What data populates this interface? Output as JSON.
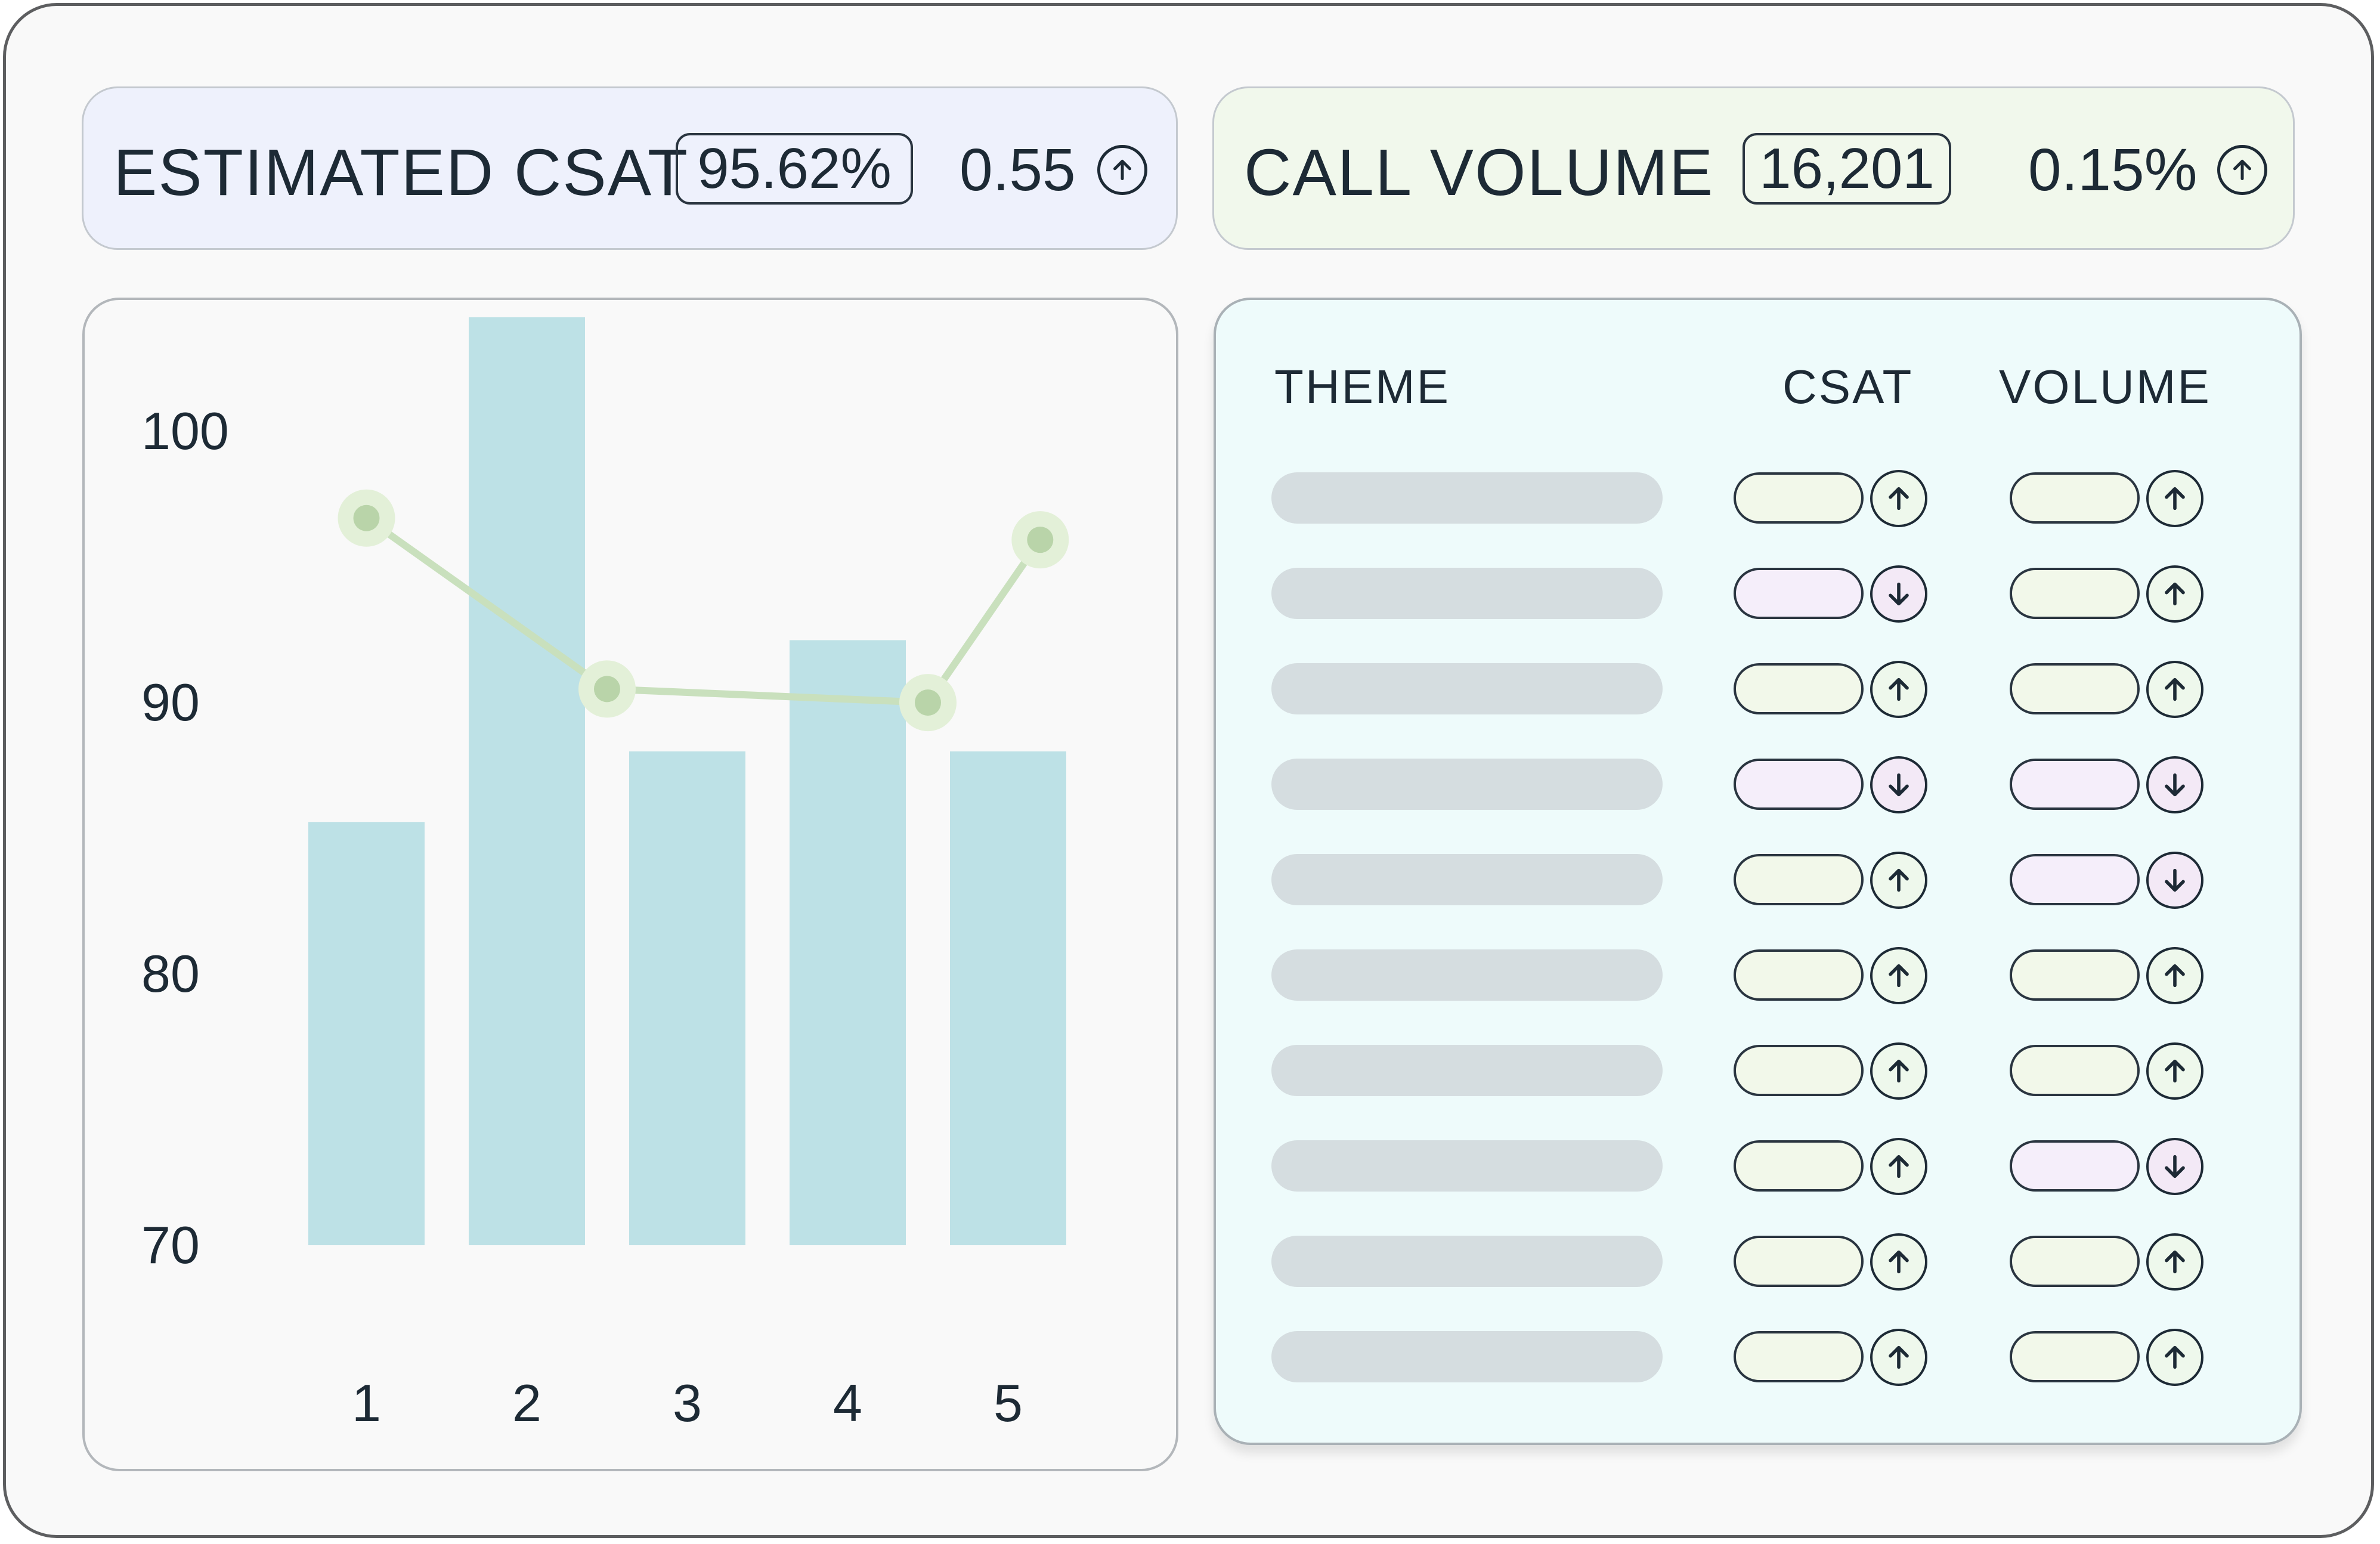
{
  "kpis": {
    "csat": {
      "label": "ESTIMATED CSAT",
      "value": "95.62%",
      "delta": "0.55",
      "trend": "up"
    },
    "volume": {
      "label": "CALL VOLUME",
      "value": "16,201",
      "delta": "0.15%",
      "trend": "up"
    }
  },
  "table": {
    "headers": {
      "theme": "THEME",
      "csat": "CSAT",
      "volume": "VOLUME"
    },
    "rows": [
      {
        "csat": "up",
        "volume": "up"
      },
      {
        "csat": "down",
        "volume": "up"
      },
      {
        "csat": "up",
        "volume": "up"
      },
      {
        "csat": "down",
        "volume": "down"
      },
      {
        "csat": "up",
        "volume": "down"
      },
      {
        "csat": "up",
        "volume": "up"
      },
      {
        "csat": "up",
        "volume": "up"
      },
      {
        "csat": "up",
        "volume": "down"
      },
      {
        "csat": "up",
        "volume": "up"
      },
      {
        "csat": "up",
        "volume": "up"
      }
    ]
  },
  "colors": {
    "bar": "#bde1e6",
    "line": "#c9e0bd",
    "marker_fill": "#b9d4a9",
    "marker_halo": "#e3f0d8",
    "trend_up": "#f2f8ea",
    "trend_down": "#f5eefa"
  },
  "chart_data": {
    "type": "bar",
    "categories": [
      "1",
      "2",
      "3",
      "4",
      "5"
    ],
    "ylim": [
      70,
      103.3
    ],
    "yticks": [
      "100",
      "90",
      "80",
      "70"
    ],
    "series": [
      {
        "type": "bar",
        "values": [
          85.6,
          104.2,
          88.2,
          92.3,
          88.2
        ]
      },
      {
        "type": "line",
        "values": [
          96.8,
          90.5,
          null,
          90.0,
          96.0
        ],
        "x": [
          1,
          2.5,
          null,
          4.5,
          5.2
        ]
      }
    ],
    "title": "",
    "xlabel": "",
    "ylabel": ""
  }
}
